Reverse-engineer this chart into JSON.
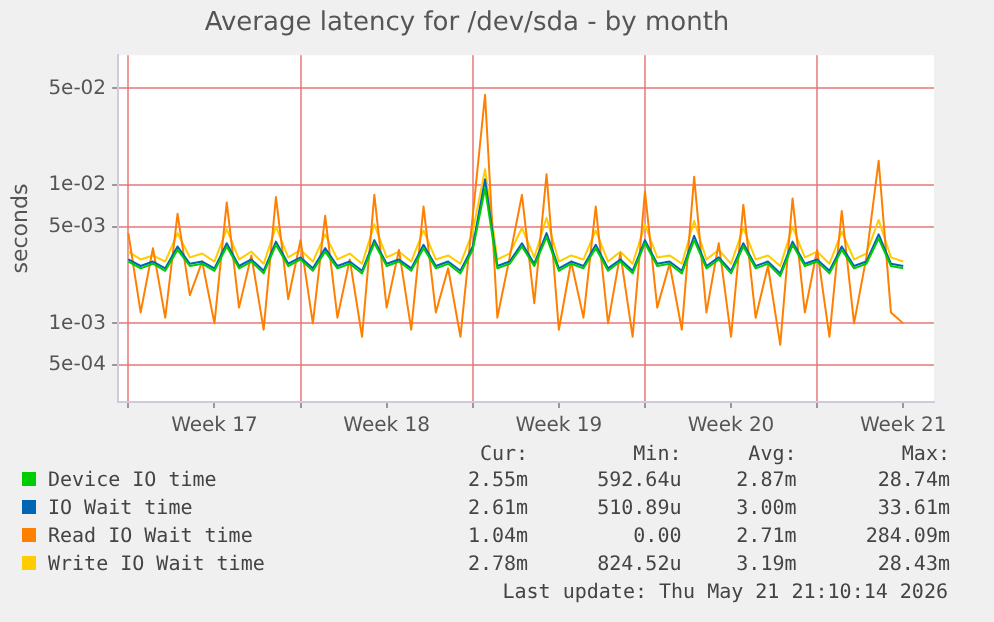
{
  "chart_data": {
    "type": "line",
    "title": "Average latency for /dev/sda - by month",
    "ylabel": "seconds",
    "log": "y",
    "grid": true,
    "legend": "bottom",
    "marker": "none",
    "line_style": "solid",
    "x": [
      "2026-04-20T00:00",
      "2026-04-20T12:00",
      "2026-04-21T00:00",
      "2026-04-21T12:00",
      "2026-04-22T00:00",
      "2026-04-22T12:00",
      "2026-04-23T00:00",
      "2026-04-23T12:00",
      "2026-04-24T00:00",
      "2026-04-24T12:00",
      "2026-04-25T00:00",
      "2026-04-25T12:00",
      "2026-04-26T00:00",
      "2026-04-26T12:00",
      "2026-04-27T00:00",
      "2026-04-27T12:00",
      "2026-04-28T00:00",
      "2026-04-28T12:00",
      "2026-04-29T00:00",
      "2026-04-29T12:00",
      "2026-04-30T00:00",
      "2026-04-30T12:00",
      "2026-05-01T00:00",
      "2026-05-01T12:00",
      "2026-05-02T00:00",
      "2026-05-02T12:00",
      "2026-05-03T00:00",
      "2026-05-03T12:00",
      "2026-05-04T00:00",
      "2026-05-04T12:00",
      "2026-05-05T00:00",
      "2026-05-05T12:00",
      "2026-05-06T00:00",
      "2026-05-06T12:00",
      "2026-05-07T00:00",
      "2026-05-07T12:00",
      "2026-05-08T00:00",
      "2026-05-08T12:00",
      "2026-05-09T00:00",
      "2026-05-09T12:00",
      "2026-05-10T00:00",
      "2026-05-10T12:00",
      "2026-05-11T00:00",
      "2026-05-11T12:00",
      "2026-05-12T00:00",
      "2026-05-12T12:00",
      "2026-05-13T00:00",
      "2026-05-13T12:00",
      "2026-05-14T00:00",
      "2026-05-14T12:00",
      "2026-05-15T00:00",
      "2026-05-15T12:00",
      "2026-05-16T00:00",
      "2026-05-16T12:00",
      "2026-05-17T00:00",
      "2026-05-17T12:00",
      "2026-05-18T00:00",
      "2026-05-18T12:00",
      "2026-05-19T00:00",
      "2026-05-19T12:00",
      "2026-05-20T00:00",
      "2026-05-20T12:00",
      "2026-05-21T00:00",
      "2026-05-21T12:00"
    ],
    "xlim": [
      "2026-04-19T14:00",
      "2026-05-22T18:00"
    ],
    "xticks": [
      {
        "value": "2026-04-20T00:00",
        "label": null
      },
      {
        "value": "2026-04-23T12:00",
        "label": "Week 17"
      },
      {
        "value": "2026-04-27T00:00",
        "label": null
      },
      {
        "value": "2026-04-30T12:00",
        "label": "Week 18"
      },
      {
        "value": "2026-05-04T00:00",
        "label": null
      },
      {
        "value": "2026-05-07T12:00",
        "label": "Week 19"
      },
      {
        "value": "2026-05-11T00:00",
        "label": null
      },
      {
        "value": "2026-05-14T12:00",
        "label": "Week 20"
      },
      {
        "value": "2026-05-18T00:00",
        "label": null
      },
      {
        "value": "2026-05-21T12:00",
        "label": "Week 21"
      }
    ],
    "ylim": [
      0.00027,
      0.087
    ],
    "yticks": [
      {
        "value": 0.0005,
        "label": "5e-04"
      },
      {
        "value": 0.001,
        "label": "1e-03"
      },
      {
        "value": 0.005,
        "label": "5e-03"
      },
      {
        "value": 0.01,
        "label": "1e-02"
      },
      {
        "value": 0.05,
        "label": "5e-02"
      }
    ],
    "series": [
      {
        "name": "Device IO time",
        "color": "#00cc00",
        "values": [
          0.0028,
          0.0025,
          0.0027,
          0.0024,
          0.0034,
          0.0026,
          0.0027,
          0.0024,
          0.0036,
          0.0025,
          0.0028,
          0.0023,
          0.0037,
          0.0026,
          0.0029,
          0.0024,
          0.0033,
          0.0025,
          0.0027,
          0.0023,
          0.0038,
          0.0026,
          0.0028,
          0.0024,
          0.0035,
          0.0025,
          0.0027,
          0.0023,
          0.0034,
          0.0095,
          0.0025,
          0.0027,
          0.0036,
          0.0026,
          0.0042,
          0.0024,
          0.0027,
          0.0025,
          0.0035,
          0.0024,
          0.0028,
          0.0023,
          0.0038,
          0.0026,
          0.0027,
          0.0023,
          0.004,
          0.0025,
          0.0029,
          0.0023,
          0.0036,
          0.0025,
          0.0027,
          0.0022,
          0.0037,
          0.0026,
          0.0028,
          0.0023,
          0.0034,
          0.0025,
          0.0027,
          0.0041,
          0.0026,
          0.0025
        ]
      },
      {
        "name": "IO Wait time",
        "color": "#0066b3",
        "values": [
          0.0029,
          0.0026,
          0.0028,
          0.0025,
          0.0036,
          0.0027,
          0.0028,
          0.0025,
          0.0038,
          0.0026,
          0.0029,
          0.0024,
          0.0039,
          0.0027,
          0.003,
          0.0025,
          0.0035,
          0.0026,
          0.0028,
          0.0024,
          0.004,
          0.0027,
          0.0029,
          0.0025,
          0.0037,
          0.0026,
          0.0028,
          0.0024,
          0.0036,
          0.011,
          0.0026,
          0.0028,
          0.0038,
          0.0027,
          0.0045,
          0.0025,
          0.0028,
          0.0026,
          0.0037,
          0.0025,
          0.0029,
          0.0024,
          0.004,
          0.0027,
          0.0028,
          0.0024,
          0.0043,
          0.0026,
          0.003,
          0.0024,
          0.0038,
          0.0026,
          0.0028,
          0.0023,
          0.0039,
          0.0027,
          0.0029,
          0.0024,
          0.0036,
          0.0026,
          0.0028,
          0.0044,
          0.0027,
          0.0026
        ]
      },
      {
        "name": "Read IO Wait time",
        "color": "#ff8000",
        "values": [
          0.0045,
          0.0012,
          0.0035,
          0.0011,
          0.0062,
          0.0016,
          0.0028,
          0.001,
          0.0075,
          0.0013,
          0.0031,
          0.0009,
          0.0082,
          0.0015,
          0.004,
          0.001,
          0.006,
          0.0011,
          0.0029,
          0.0008,
          0.0085,
          0.0013,
          0.0034,
          0.0009,
          0.007,
          0.0012,
          0.0025,
          0.0008,
          0.006,
          0.045,
          0.0011,
          0.003,
          0.0085,
          0.0014,
          0.012,
          0.0009,
          0.0028,
          0.0011,
          0.007,
          0.001,
          0.0032,
          0.0008,
          0.009,
          0.0013,
          0.0027,
          0.0009,
          0.0115,
          0.0012,
          0.0038,
          0.0008,
          0.0072,
          0.0011,
          0.0026,
          0.0007,
          0.008,
          0.0012,
          0.0034,
          0.0008,
          0.0065,
          0.001,
          0.003,
          0.015,
          0.0012,
          0.001
        ]
      },
      {
        "name": "Write IO Wait time",
        "color": "#ffcc00",
        "values": [
          0.0033,
          0.0029,
          0.0031,
          0.0028,
          0.0045,
          0.003,
          0.0032,
          0.0028,
          0.0048,
          0.0029,
          0.0033,
          0.0027,
          0.005,
          0.003,
          0.0034,
          0.0028,
          0.0044,
          0.0029,
          0.0032,
          0.0027,
          0.0052,
          0.003,
          0.0033,
          0.0028,
          0.0047,
          0.0029,
          0.0031,
          0.0027,
          0.0046,
          0.013,
          0.0029,
          0.0032,
          0.0049,
          0.003,
          0.0058,
          0.0028,
          0.0031,
          0.0029,
          0.0047,
          0.0028,
          0.0033,
          0.0027,
          0.0052,
          0.003,
          0.0031,
          0.0027,
          0.0055,
          0.0029,
          0.0034,
          0.0027,
          0.0049,
          0.0029,
          0.0031,
          0.0026,
          0.005,
          0.003,
          0.0033,
          0.0027,
          0.0046,
          0.0029,
          0.0032,
          0.0056,
          0.003,
          0.0028
        ]
      }
    ],
    "annotations": [
      "Cur:",
      "Min:",
      "Avg:",
      "Max:",
      "2.55m",
      "592.64u",
      "2.87m",
      "28.74m",
      "2.61m",
      "510.89u",
      "3.00m",
      "33.61m",
      "1.04m",
      "0.00",
      "2.71m",
      "284.09m",
      "2.78m",
      "824.52u",
      "3.19m",
      "28.43m",
      "Last update: Thu May 21 21:10:14 2026"
    ]
  }
}
